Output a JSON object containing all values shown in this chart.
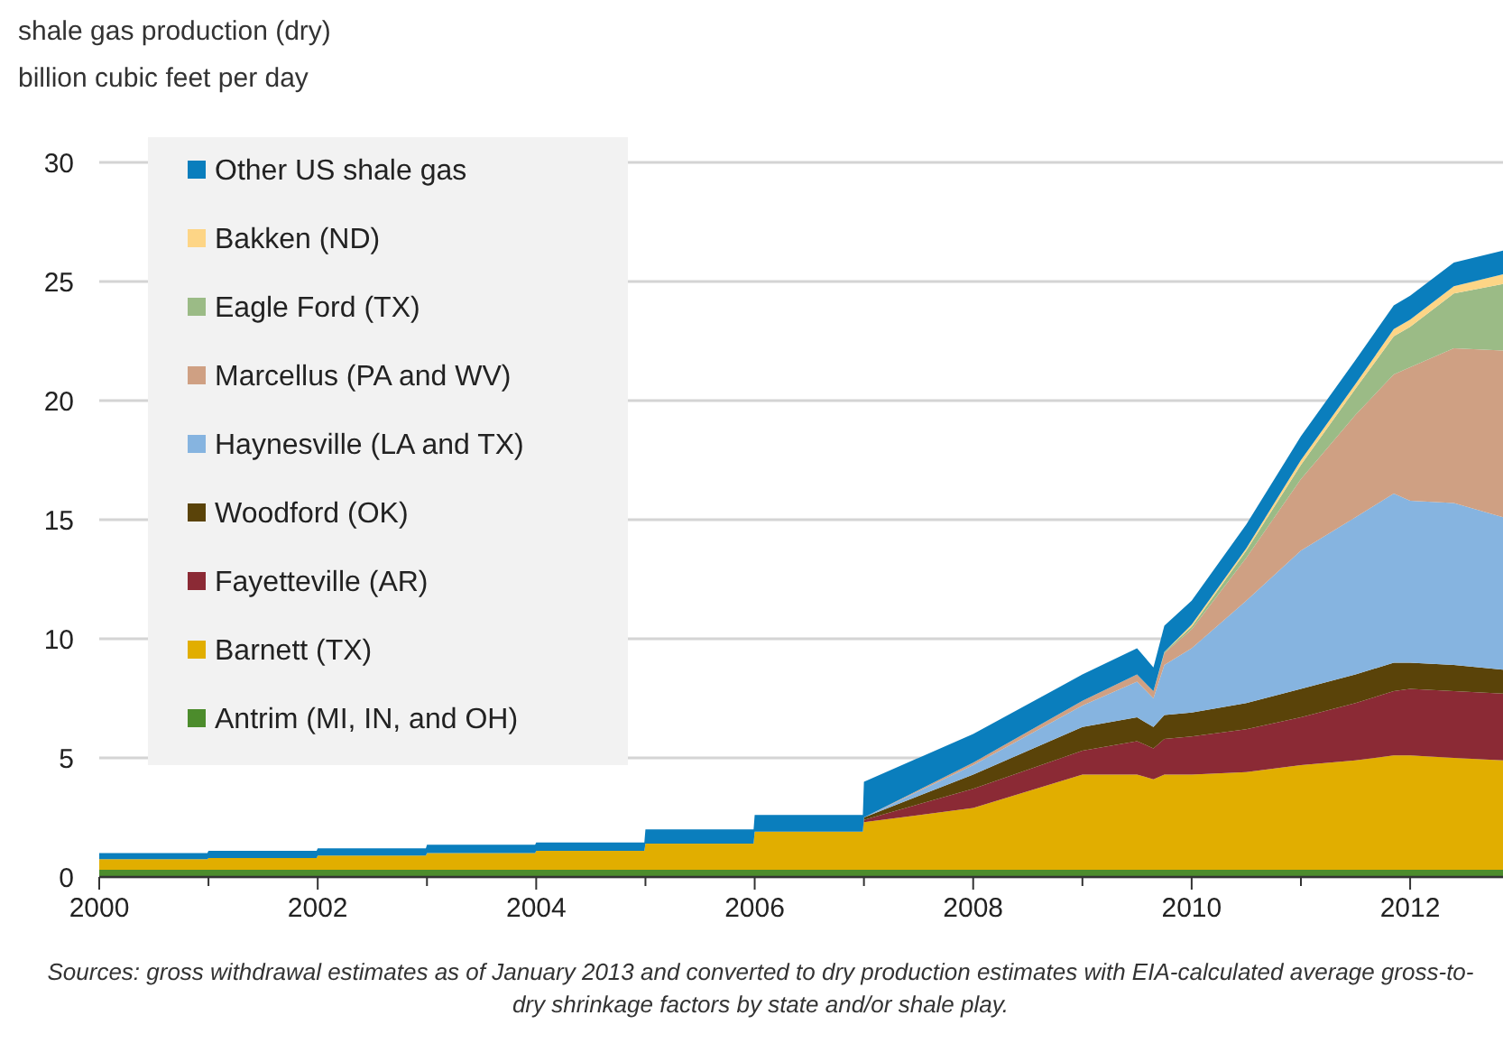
{
  "chart_data": {
    "type": "area",
    "stacked": true,
    "title": "shale gas production (dry)",
    "subtitle": "billion cubic feet per day",
    "x": [
      2000,
      2000.99,
      2001,
      2001.99,
      2002,
      2002.99,
      2003,
      2003.99,
      2004,
      2004.99,
      2005,
      2005.99,
      2006,
      2006.99,
      2007,
      2008,
      2009,
      2009.5,
      2009.65,
      2009.75,
      2010,
      2010.5,
      2011,
      2011.5,
      2011.85,
      2012,
      2012.4,
      2012.85
    ],
    "xlim": [
      2000,
      2012.85
    ],
    "xticks": [
      2000,
      {
        "value": 2001,
        "label": null
      },
      2002,
      {
        "value": 2003,
        "label": null
      },
      2004,
      {
        "value": 2005,
        "label": null
      },
      2006,
      {
        "value": 2007,
        "label": null
      },
      2008,
      {
        "value": 2009,
        "label": null
      },
      2010,
      {
        "value": 2011,
        "label": null
      },
      2012
    ],
    "ylim": [
      0,
      30
    ],
    "yticks": [
      0,
      5,
      10,
      15,
      20,
      25,
      30
    ],
    "grid": "y",
    "legend": "top left",
    "series": [
      {
        "name": "Antrim (MI, IN, and OH)",
        "color": "#4c8c2c",
        "values": [
          0.3,
          0.3,
          0.3,
          0.3,
          0.3,
          0.3,
          0.3,
          0.3,
          0.3,
          0.3,
          0.3,
          0.3,
          0.3,
          0.3,
          0.3,
          0.3,
          0.3,
          0.3,
          0.3,
          0.3,
          0.3,
          0.3,
          0.3,
          0.3,
          0.3,
          0.3,
          0.3,
          0.3
        ]
      },
      {
        "name": "Barnett (TX)",
        "color": "#e1ae00",
        "values": [
          0.45,
          0.45,
          0.5,
          0.5,
          0.6,
          0.6,
          0.7,
          0.7,
          0.8,
          0.8,
          1.1,
          1.1,
          1.6,
          1.6,
          2.0,
          2.6,
          4.0,
          4.0,
          3.8,
          4.0,
          4.0,
          4.1,
          4.4,
          4.6,
          4.8,
          4.8,
          4.7,
          4.6
        ]
      },
      {
        "name": "Fayetteville (AR)",
        "color": "#8b2a35",
        "values": [
          0,
          0,
          0,
          0,
          0,
          0,
          0,
          0,
          0,
          0,
          0,
          0,
          0,
          0,
          0.1,
          0.8,
          1.0,
          1.4,
          1.3,
          1.5,
          1.6,
          1.8,
          2.0,
          2.4,
          2.7,
          2.8,
          2.8,
          2.8
        ]
      },
      {
        "name": "Woodford (OK)",
        "color": "#5a4309",
        "values": [
          0,
          0,
          0,
          0,
          0,
          0,
          0,
          0,
          0,
          0,
          0,
          0,
          0,
          0,
          0.1,
          0.6,
          1.0,
          1.0,
          0.9,
          1.0,
          1.0,
          1.1,
          1.2,
          1.2,
          1.2,
          1.1,
          1.1,
          1.0
        ]
      },
      {
        "name": "Haynesville (LA and TX)",
        "color": "#86b4e0",
        "values": [
          0,
          0,
          0,
          0,
          0,
          0,
          0,
          0,
          0,
          0,
          0,
          0,
          0,
          0,
          0,
          0.4,
          0.9,
          1.5,
          1.2,
          2.1,
          2.7,
          4.3,
          5.8,
          6.6,
          7.1,
          6.8,
          6.8,
          6.4
        ]
      },
      {
        "name": "Marcellus (PA and WV)",
        "color": "#cfa083",
        "values": [
          0,
          0,
          0,
          0,
          0,
          0,
          0,
          0,
          0,
          0,
          0,
          0,
          0,
          0,
          0,
          0.1,
          0.2,
          0.3,
          0.3,
          0.5,
          0.8,
          1.8,
          3.0,
          4.3,
          5.0,
          5.6,
          6.5,
          7.0
        ]
      },
      {
        "name": "Eagle Ford (TX)",
        "color": "#9bbb86",
        "values": [
          0,
          0,
          0,
          0,
          0,
          0,
          0,
          0,
          0,
          0,
          0,
          0,
          0,
          0,
          0,
          0,
          0,
          0,
          0,
          0.05,
          0.1,
          0.3,
          0.6,
          1.1,
          1.6,
          1.7,
          2.3,
          2.8
        ]
      },
      {
        "name": "Bakken (ND)",
        "color": "#fdd586",
        "values": [
          0,
          0,
          0,
          0,
          0,
          0,
          0,
          0,
          0,
          0,
          0,
          0,
          0,
          0,
          0,
          0,
          0,
          0,
          0,
          0,
          0.1,
          0.1,
          0.2,
          0.2,
          0.3,
          0.3,
          0.3,
          0.4
        ]
      },
      {
        "name": "Other US shale gas",
        "color": "#0a7ebd",
        "values": [
          0.25,
          0.25,
          0.3,
          0.3,
          0.3,
          0.3,
          0.35,
          0.35,
          0.35,
          0.35,
          0.6,
          0.6,
          0.7,
          0.7,
          1.5,
          1.2,
          1.1,
          1.1,
          1.0,
          1.1,
          1.0,
          1.0,
          1.0,
          1.0,
          1.0,
          1.0,
          1.0,
          1.0
        ]
      }
    ],
    "annotations": [
      "Sources:  gross withdrawal estimates as of January 2013 and converted to dry production estimates with EIA-calculated average gross-to-dry shrinkage factors by state and/or shale play."
    ]
  }
}
